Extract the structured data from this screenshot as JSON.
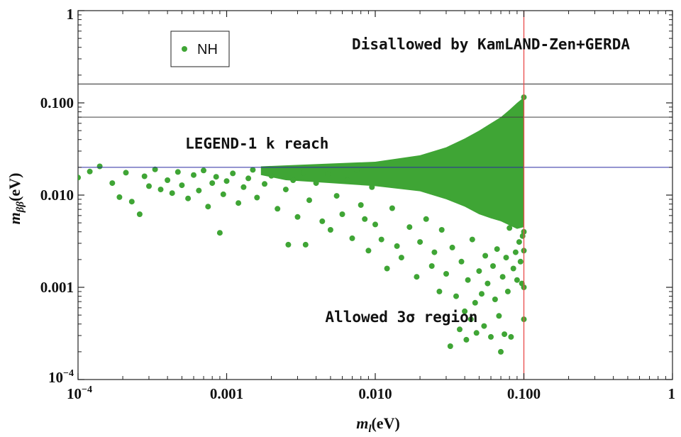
{
  "chart_data": {
    "type": "scatter",
    "title": "",
    "xlabel": "m_l(eV)",
    "ylabel": "m_ββ(eV)",
    "x_scale": "log",
    "y_scale": "log",
    "xlim": [
      0.0001,
      1
    ],
    "ylim": [
      0.0001,
      1
    ],
    "x_ticks": [
      {
        "value": 0.0001,
        "base": "10",
        "exp": "−4"
      },
      {
        "value": 0.001,
        "label": "0.001"
      },
      {
        "value": 0.01,
        "label": "0.010"
      },
      {
        "value": 0.1,
        "label": "0.100"
      },
      {
        "value": 1,
        "label": "1"
      }
    ],
    "y_ticks": [
      {
        "value": 0.0001,
        "base": "10",
        "exp": "−4"
      },
      {
        "value": 0.001,
        "label": "0.001"
      },
      {
        "value": 0.01,
        "label": "0.010"
      },
      {
        "value": 0.1,
        "label": "0.100"
      },
      {
        "value": 1,
        "label": "1"
      }
    ],
    "legend": {
      "position": "top-left",
      "entries": [
        {
          "label": "NH",
          "color": "#3fa535"
        }
      ]
    },
    "series": [
      {
        "name": "NH",
        "color": "#3fa535",
        "points": [
          [
            0.0001,
            0.0155
          ],
          [
            0.00012,
            0.018
          ],
          [
            0.00014,
            0.0205
          ],
          [
            0.00017,
            0.0135
          ],
          [
            0.00019,
            0.0095
          ],
          [
            0.00021,
            0.0175
          ],
          [
            0.00023,
            0.0085
          ],
          [
            0.00026,
            0.0062
          ],
          [
            0.00028,
            0.016
          ],
          [
            0.0003,
            0.0125
          ],
          [
            0.00033,
            0.019
          ],
          [
            0.00036,
            0.0115
          ],
          [
            0.0004,
            0.0145
          ],
          [
            0.00043,
            0.0105
          ],
          [
            0.00047,
            0.0178
          ],
          [
            0.0005,
            0.0128
          ],
          [
            0.00055,
            0.0092
          ],
          [
            0.0006,
            0.0165
          ],
          [
            0.00065,
            0.0112
          ],
          [
            0.0007,
            0.0185
          ],
          [
            0.00075,
            0.0075
          ],
          [
            0.0008,
            0.0135
          ],
          [
            0.00085,
            0.0158
          ],
          [
            0.0009,
            0.0039
          ],
          [
            0.00095,
            0.0102
          ],
          [
            0.001,
            0.0142
          ],
          [
            0.0011,
            0.0172
          ],
          [
            0.0012,
            0.0082
          ],
          [
            0.0013,
            0.0122
          ],
          [
            0.0014,
            0.0152
          ],
          [
            0.0015,
            0.0188
          ],
          [
            0.0016,
            0.0094
          ],
          [
            0.0018,
            0.0132
          ],
          [
            0.002,
            0.0162
          ],
          [
            0.0022,
            0.0071
          ],
          [
            0.0025,
            0.0115
          ],
          [
            0.0026,
            0.0029
          ],
          [
            0.0028,
            0.0145
          ],
          [
            0.003,
            0.0058
          ],
          [
            0.0033,
            0.0175
          ],
          [
            0.0034,
            0.0029
          ],
          [
            0.0036,
            0.0088
          ],
          [
            0.004,
            0.0135
          ],
          [
            0.0044,
            0.0052
          ],
          [
            0.0048,
            0.0168
          ],
          [
            0.005,
            0.0042
          ],
          [
            0.0055,
            0.0098
          ],
          [
            0.006,
            0.0062
          ],
          [
            0.0065,
            0.0145
          ],
          [
            0.007,
            0.0034
          ],
          [
            0.0075,
            0.0188
          ],
          [
            0.008,
            0.0078
          ],
          [
            0.0085,
            0.0055
          ],
          [
            0.009,
            0.0025
          ],
          [
            0.0095,
            0.0122
          ],
          [
            0.01,
            0.0048
          ],
          [
            0.011,
            0.0033
          ],
          [
            0.012,
            0.0016
          ],
          [
            0.013,
            0.0072
          ],
          [
            0.014,
            0.0028
          ],
          [
            0.015,
            0.0021
          ],
          [
            0.017,
            0.0045
          ],
          [
            0.019,
            0.0013
          ],
          [
            0.02,
            0.0031
          ],
          [
            0.022,
            0.0055
          ],
          [
            0.024,
            0.0017
          ],
          [
            0.025,
            0.0024
          ],
          [
            0.027,
            0.0009
          ],
          [
            0.028,
            0.0042
          ],
          [
            0.03,
            0.0014
          ],
          [
            0.032,
            0.00023
          ],
          [
            0.033,
            0.0027
          ],
          [
            0.035,
            0.0008
          ],
          [
            0.037,
            0.00035
          ],
          [
            0.038,
            0.0019
          ],
          [
            0.04,
            0.00055
          ],
          [
            0.041,
            0.00027
          ],
          [
            0.042,
            0.0012
          ],
          [
            0.044,
            0.00045
          ],
          [
            0.045,
            0.0033
          ],
          [
            0.047,
            0.00068
          ],
          [
            0.048,
            0.00032
          ],
          [
            0.05,
            0.0015
          ],
          [
            0.052,
            0.00085
          ],
          [
            0.054,
            0.00038
          ],
          [
            0.055,
            0.0022
          ],
          [
            0.057,
            0.0011
          ],
          [
            0.06,
            0.00029
          ],
          [
            0.062,
            0.0017
          ],
          [
            0.064,
            0.00074
          ],
          [
            0.066,
            0.0026
          ],
          [
            0.068,
            0.00049
          ],
          [
            0.07,
            0.0002
          ],
          [
            0.072,
            0.0013
          ],
          [
            0.074,
            0.00031
          ],
          [
            0.076,
            0.0021
          ],
          [
            0.078,
            0.0009
          ],
          [
            0.08,
            0.0044
          ],
          [
            0.082,
            0.00029
          ],
          [
            0.085,
            0.0016
          ],
          [
            0.088,
            0.0024
          ],
          [
            0.09,
            0.0012
          ],
          [
            0.093,
            0.0031
          ],
          [
            0.095,
            0.0019
          ],
          [
            0.097,
            0.0011
          ],
          [
            0.098,
            0.0036
          ],
          [
            0.1,
            0.00045
          ],
          [
            0.1,
            0.001
          ],
          [
            0.1,
            0.0025
          ],
          [
            0.1,
            0.004
          ],
          [
            0.1,
            0.115
          ]
        ]
      }
    ],
    "dense_region": {
      "description": "filled band of NH points",
      "upper_boundary": [
        [
          0.0017,
          0.0205
        ],
        [
          0.005,
          0.022
        ],
        [
          0.01,
          0.023
        ],
        [
          0.02,
          0.027
        ],
        [
          0.03,
          0.033
        ],
        [
          0.04,
          0.041
        ],
        [
          0.05,
          0.05
        ],
        [
          0.06,
          0.06
        ],
        [
          0.07,
          0.07
        ],
        [
          0.08,
          0.084
        ],
        [
          0.09,
          0.1
        ],
        [
          0.1,
          0.115
        ]
      ],
      "lower_boundary": [
        [
          0.1,
          0.0045
        ],
        [
          0.09,
          0.0043
        ],
        [
          0.08,
          0.0047
        ],
        [
          0.07,
          0.0052
        ],
        [
          0.06,
          0.0056
        ],
        [
          0.05,
          0.0062
        ],
        [
          0.04,
          0.0075
        ],
        [
          0.03,
          0.009
        ],
        [
          0.02,
          0.011
        ],
        [
          0.01,
          0.0125
        ],
        [
          0.005,
          0.0135
        ],
        [
          0.0025,
          0.0145
        ],
        [
          0.0017,
          0.0165
        ]
      ]
    },
    "reference_lines": [
      {
        "orientation": "horizontal",
        "value": 0.16,
        "color": "#404040"
      },
      {
        "orientation": "horizontal",
        "value": 0.07,
        "color": "#404040"
      },
      {
        "orientation": "horizontal",
        "value": 0.02,
        "color": "#2a2aa0"
      },
      {
        "orientation": "vertical",
        "value": 0.1,
        "color": "#e84a4a"
      }
    ],
    "annotations": [
      {
        "text": "Disallowed by KamLAND-Zen+GERDA",
        "x": 0.06,
        "y": 0.38
      },
      {
        "text": "LEGEND-1 k reach",
        "x": 0.0016,
        "y": 0.032
      },
      {
        "text": "Allowed 3σ region",
        "x": 0.015,
        "y": 0.00042
      }
    ]
  }
}
